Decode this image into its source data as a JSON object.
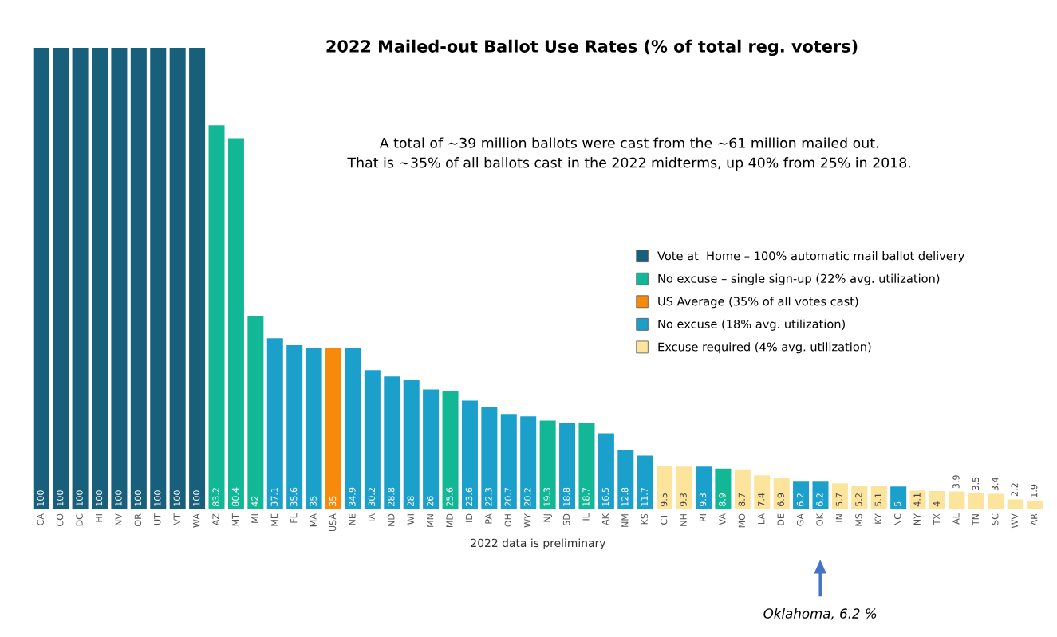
{
  "chart_data": {
    "type": "bar",
    "title": "2022 Mailed-out Ballot Use Rates (% of total reg. voters)",
    "subtitle": "A total of ~39 million ballots were cast from the ~61 million mailed out.\nThat is ~35% of all ballots cast in the 2022 midterms, up 40% from 25% in 2018.",
    "xlabel": "2022 data is preliminary",
    "annotations": [
      "Oklahoma, 6.2 %"
    ],
    "categories": [
      "CA",
      "CO",
      "DC",
      "HI",
      "NV",
      "OR",
      "UT",
      "VT",
      "WA",
      "AZ",
      "MT",
      "MI",
      "ME",
      "FL",
      "MA",
      "USA",
      "NE",
      "IA",
      "ND",
      "WI",
      "MN",
      "MD",
      "ID",
      "PA",
      "OH",
      "WY",
      "NJ",
      "SD",
      "IL",
      "AK",
      "NM",
      "KS",
      "CT",
      "NH",
      "RI",
      "VA",
      "MO",
      "LA",
      "DE",
      "GA",
      "OK",
      "IN",
      "MS",
      "KY",
      "NC",
      "NY",
      "TX",
      "AL",
      "TN",
      "SC",
      "WV",
      "AR"
    ],
    "series": [
      {
        "name": "Vote at  Home – 100% automatic mail ballot delivery",
        "color": "#175f7a",
        "values": [
          100,
          100,
          100,
          100,
          100,
          100,
          100,
          100,
          100,
          null,
          null,
          null,
          null,
          null,
          null,
          null,
          null,
          null,
          null,
          null,
          null,
          null,
          null,
          null,
          null,
          null,
          null,
          null,
          null,
          null,
          null,
          null,
          null,
          null,
          null,
          null,
          null,
          null,
          null,
          null,
          null,
          null,
          null,
          null,
          null,
          null,
          null,
          null,
          null,
          null,
          null,
          null
        ]
      },
      {
        "name": "No excuse – single sign-up (22% avg. utilization)",
        "color": "#12b896",
        "values": [
          null,
          null,
          null,
          null,
          null,
          null,
          null,
          null,
          null,
          83.2,
          80.4,
          42,
          null,
          null,
          null,
          null,
          null,
          null,
          null,
          null,
          null,
          25.6,
          null,
          null,
          null,
          null,
          19.3,
          null,
          18.7,
          null,
          null,
          null,
          null,
          null,
          null,
          8.9,
          null,
          null,
          null,
          null,
          null,
          null,
          null,
          null,
          null,
          null,
          null,
          null,
          null,
          null,
          null,
          null
        ]
      },
      {
        "name": "US Average (35% of all votes cast)",
        "color": "#f78a0a",
        "values": [
          null,
          null,
          null,
          null,
          null,
          null,
          null,
          null,
          null,
          null,
          null,
          null,
          null,
          null,
          null,
          35,
          null,
          null,
          null,
          null,
          null,
          null,
          null,
          null,
          null,
          null,
          null,
          null,
          null,
          null,
          null,
          null,
          null,
          null,
          null,
          null,
          null,
          null,
          null,
          null,
          null,
          null,
          null,
          null,
          null,
          null,
          null,
          null,
          null,
          null,
          null,
          null
        ]
      },
      {
        "name": "No excuse (18% avg. utilization)",
        "color": "#1ba0cc",
        "values": [
          null,
          null,
          null,
          null,
          null,
          null,
          null,
          null,
          null,
          null,
          null,
          null,
          37.1,
          35.6,
          35,
          null,
          34.9,
          30.2,
          28.8,
          28,
          26,
          null,
          23.6,
          22.3,
          20.7,
          20.2,
          null,
          18.8,
          null,
          16.5,
          12.8,
          11.7,
          null,
          null,
          9.3,
          null,
          null,
          null,
          null,
          6.2,
          6.2,
          null,
          null,
          null,
          5,
          null,
          null,
          null,
          null,
          null,
          null,
          null
        ]
      },
      {
        "name": "Excuse required (4% avg. utilization)",
        "color": "#fde49c",
        "values": [
          null,
          null,
          null,
          null,
          null,
          null,
          null,
          null,
          null,
          null,
          null,
          null,
          null,
          null,
          null,
          null,
          null,
          null,
          null,
          null,
          null,
          null,
          null,
          null,
          null,
          null,
          null,
          null,
          null,
          null,
          null,
          null,
          9.5,
          9.3,
          null,
          null,
          8.7,
          7.4,
          6.9,
          null,
          null,
          5.7,
          5.2,
          5.1,
          null,
          4.1,
          4,
          3.9,
          3.5,
          3.4,
          2.2,
          1.9
        ]
      }
    ],
    "ylim": [
      0,
      100
    ],
    "tick_labels": "x",
    "data_labels": true,
    "legend": "right",
    "grid": false
  }
}
